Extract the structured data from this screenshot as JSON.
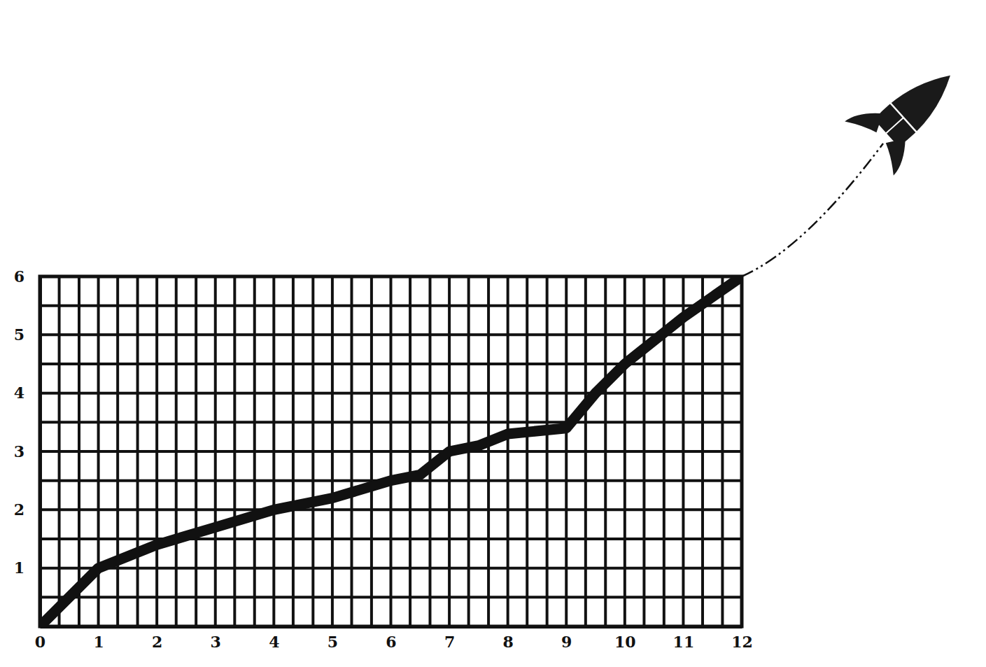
{
  "chart_data": {
    "type": "line",
    "color": "#111111",
    "x": [
      0,
      0.5,
      1,
      1.5,
      2,
      3,
      4,
      5,
      6,
      6.5,
      7,
      7.5,
      8,
      9,
      9.5,
      10,
      11,
      12
    ],
    "values": [
      0,
      0.5,
      1,
      1.2,
      1.4,
      1.7,
      2,
      2.2,
      2.5,
      2.6,
      3,
      3.1,
      3.3,
      3.4,
      4,
      4.5,
      5.3,
      6
    ],
    "xlim": [
      0,
      12
    ],
    "ylim": [
      0,
      6
    ],
    "xticks": [
      0,
      1,
      2,
      3,
      4,
      5,
      6,
      7,
      8,
      9,
      10,
      11,
      12
    ],
    "yticks": [
      1,
      2,
      3,
      4,
      5,
      6
    ],
    "x_gridlines": [
      0,
      0.33,
      0.67,
      1,
      1.33,
      1.67,
      2,
      2.33,
      2.67,
      3,
      3.33,
      3.67,
      4,
      4.33,
      4.67,
      5,
      5.33,
      5.67,
      6,
      6.33,
      6.67,
      7,
      7.33,
      7.67,
      8,
      8.33,
      8.67,
      9,
      9.33,
      9.67,
      10,
      10.33,
      10.67,
      11,
      11.33,
      11.67,
      12
    ],
    "y_gridlines": [
      0,
      0.5,
      1,
      1.5,
      2,
      2.5,
      3,
      3.5,
      4,
      4.5,
      5,
      5.5,
      6
    ],
    "grid": true
  }
}
